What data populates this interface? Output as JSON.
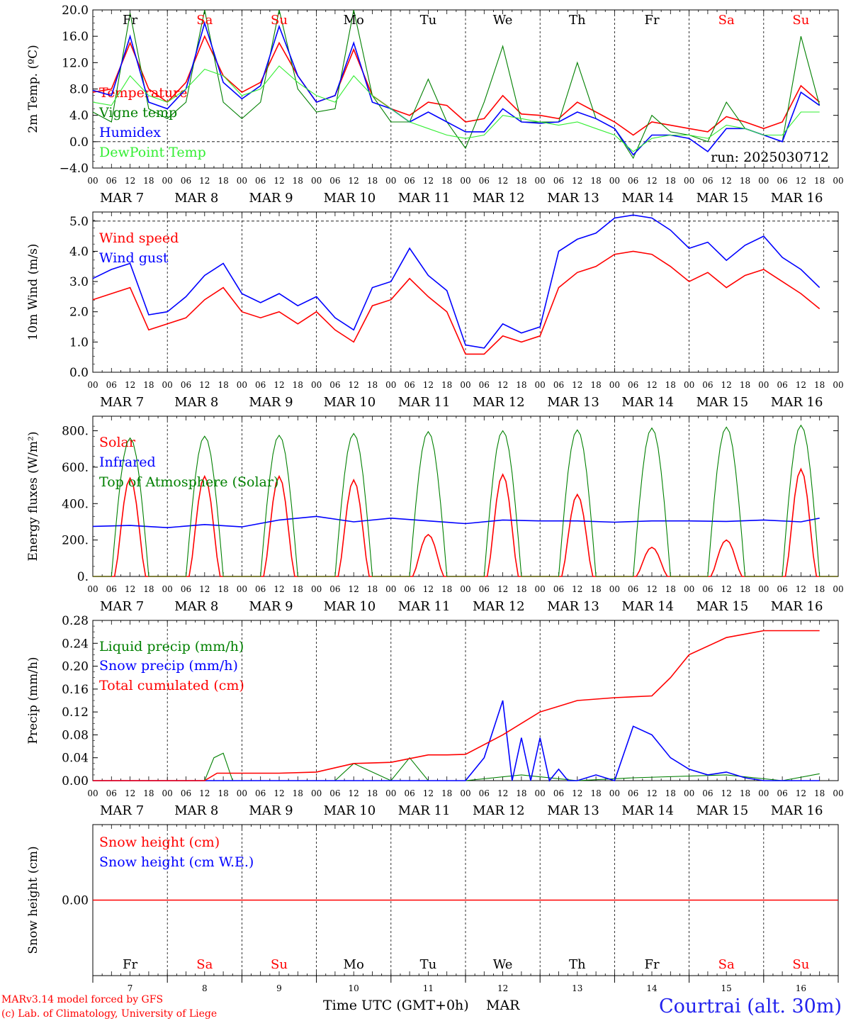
{
  "colors": {
    "red": "#ff0000",
    "green": "#008000",
    "blue": "#0000ff",
    "lightgreen": "#33ee33",
    "weekday": "#000000",
    "weekend": "#ff0000",
    "location": "#2222ee"
  },
  "time_axis": {
    "hour_labels": [
      "00",
      "06",
      "12",
      "18"
    ],
    "dates": [
      "MAR  7",
      "MAR  8",
      "MAR  9",
      "MAR 10",
      "MAR 11",
      "MAR 12",
      "MAR 13",
      "MAR 14",
      "MAR 15",
      "MAR 16"
    ],
    "days": [
      {
        "label": "Fr",
        "weekend": false
      },
      {
        "label": "Sa",
        "weekend": true
      },
      {
        "label": "Su",
        "weekend": true
      },
      {
        "label": "Mo",
        "weekend": false
      },
      {
        "label": "Tu",
        "weekend": false
      },
      {
        "label": "We",
        "weekend": false
      },
      {
        "label": "Th",
        "weekend": false
      },
      {
        "label": "Fr",
        "weekend": false
      },
      {
        "label": "Sa",
        "weekend": true
      },
      {
        "label": "Su",
        "weekend": true
      }
    ],
    "day_numbers": [
      "7",
      "8",
      "9",
      "10",
      "11",
      "12",
      "13",
      "14",
      "15",
      "16"
    ]
  },
  "footer": {
    "model_line": "MARv3.14 model forced by GFS",
    "credit_line": "(c) Lab. of Climatology, University of Liege",
    "xlabel": "Time UTC (GMT+0h)",
    "month": "MAR",
    "location": "Courtrai (alt. 30m)"
  },
  "chart_data": [
    {
      "type": "line",
      "id": "temp",
      "ylabel": "2m Temp. (ºC)",
      "ylim": [
        -4,
        20
      ],
      "yticks": [
        "20.0",
        "16.0",
        "12.0",
        "8.0",
        "4.0",
        "0.0",
        "−4.0"
      ],
      "reference_line": 0,
      "annotation": "run: 2025030712",
      "x_unit": "hours since MAR 7 00 UTC",
      "series": [
        {
          "name": "Temperature",
          "color": "red",
          "x": [
            0,
            6,
            12,
            18,
            24,
            30,
            36,
            42,
            48,
            54,
            60,
            66,
            72,
            78,
            84,
            90,
            96,
            102,
            108,
            114,
            120,
            126,
            132,
            138,
            144,
            150,
            156,
            162,
            168,
            174,
            180,
            186,
            192,
            198,
            204,
            210,
            216,
            222,
            228,
            234
          ],
          "values": [
            7.5,
            8,
            15,
            8,
            6,
            9,
            16,
            10,
            7.5,
            9,
            15,
            10,
            6,
            7,
            14,
            7,
            5,
            4,
            6,
            5.5,
            3,
            3.5,
            7,
            4.2,
            4,
            3.5,
            6,
            4.5,
            3,
            1,
            3,
            2.5,
            2,
            1.5,
            3.8,
            3,
            2,
            3,
            8.5,
            6
          ]
        },
        {
          "name": "Vigne temp",
          "color": "green",
          "x": [
            0,
            6,
            12,
            18,
            24,
            30,
            36,
            42,
            48,
            54,
            60,
            66,
            72,
            78,
            84,
            90,
            96,
            102,
            108,
            114,
            120,
            126,
            132,
            138,
            144,
            150,
            156,
            162,
            168,
            174,
            180,
            186,
            192,
            198,
            204,
            210,
            216,
            222,
            228,
            234
          ],
          "values": [
            4.5,
            3,
            19.5,
            5,
            3.5,
            6,
            20,
            6,
            3.5,
            6,
            20,
            8,
            4.5,
            5,
            20,
            7,
            3,
            3,
            9.5,
            3,
            -1,
            6,
            14.5,
            3,
            3,
            3,
            12,
            3.5,
            2,
            -2.5,
            4,
            1.5,
            1,
            0,
            6,
            2,
            1,
            0,
            16,
            5.5
          ]
        },
        {
          "name": "Humidex",
          "color": "blue",
          "x": [
            0,
            6,
            12,
            18,
            24,
            30,
            36,
            42,
            48,
            54,
            60,
            66,
            72,
            78,
            84,
            90,
            96,
            102,
            108,
            114,
            120,
            126,
            132,
            138,
            144,
            150,
            156,
            162,
            168,
            174,
            180,
            186,
            192,
            198,
            204,
            210,
            216,
            222,
            228,
            234
          ],
          "values": [
            7.8,
            7,
            16,
            6,
            5,
            8,
            18,
            9,
            6.5,
            8.5,
            17.5,
            10,
            6,
            7,
            15,
            6,
            5,
            3,
            4.5,
            3,
            1.5,
            1.5,
            5,
            3,
            2.8,
            3,
            4.5,
            3.5,
            2,
            -2,
            1,
            1,
            0.5,
            -1.5,
            2,
            2,
            1,
            0,
            7.5,
            5.5
          ]
        },
        {
          "name": "DewPoint Temp",
          "color": "lightgreen",
          "x": [
            0,
            6,
            12,
            18,
            24,
            30,
            36,
            42,
            48,
            54,
            60,
            66,
            72,
            78,
            84,
            90,
            96,
            102,
            108,
            114,
            120,
            126,
            132,
            138,
            144,
            150,
            156,
            162,
            168,
            174,
            180,
            186,
            192,
            198,
            204,
            210,
            216,
            222,
            228,
            234
          ],
          "values": [
            6,
            5.5,
            10,
            7,
            6,
            8,
            11,
            10,
            7,
            8,
            11.5,
            9,
            7,
            6,
            10,
            7,
            5,
            3,
            2,
            1,
            0.5,
            1,
            4,
            3.5,
            3,
            2.5,
            3,
            2,
            1,
            -1.5,
            0.5,
            1,
            1,
            0.5,
            2.5,
            2,
            1,
            1,
            4.5,
            4.5
          ]
        }
      ]
    },
    {
      "type": "line",
      "id": "wind",
      "ylabel": "10m Wind (m/s)",
      "ylim": [
        0,
        5.3
      ],
      "yticks": [
        "5.0",
        "4.0",
        "3.0",
        "2.0",
        "1.0",
        "0.0"
      ],
      "reference_line": 5,
      "x_unit": "hours since MAR 7 00 UTC",
      "series": [
        {
          "name": "Wind speed",
          "color": "red",
          "x": [
            0,
            6,
            12,
            18,
            24,
            30,
            36,
            42,
            48,
            54,
            60,
            66,
            72,
            78,
            84,
            90,
            96,
            102,
            108,
            114,
            120,
            126,
            132,
            138,
            144,
            150,
            156,
            162,
            168,
            174,
            180,
            186,
            192,
            198,
            204,
            210,
            216,
            222,
            228,
            234
          ],
          "values": [
            2.4,
            2.6,
            2.8,
            1.4,
            1.6,
            1.8,
            2.4,
            2.8,
            2,
            1.8,
            2,
            1.6,
            2,
            1.4,
            1,
            2.2,
            2.4,
            3.1,
            2.5,
            2,
            0.6,
            0.6,
            1.2,
            1,
            1.2,
            2.8,
            3.3,
            3.5,
            3.9,
            4,
            3.9,
            3.5,
            3,
            3.3,
            2.8,
            3.2,
            3.4,
            3,
            2.6,
            2.1
          ]
        },
        {
          "name": "Wind gust",
          "color": "blue",
          "x": [
            0,
            6,
            12,
            18,
            24,
            30,
            36,
            42,
            48,
            54,
            60,
            66,
            72,
            78,
            84,
            90,
            96,
            102,
            108,
            114,
            120,
            126,
            132,
            138,
            144,
            150,
            156,
            162,
            168,
            174,
            180,
            186,
            192,
            198,
            204,
            210,
            216,
            222,
            228,
            234
          ],
          "values": [
            3.1,
            3.4,
            3.6,
            1.9,
            2,
            2.5,
            3.2,
            3.6,
            2.6,
            2.3,
            2.6,
            2.2,
            2.5,
            1.8,
            1.4,
            2.8,
            3,
            4.1,
            3.2,
            2.7,
            0.9,
            0.8,
            1.6,
            1.3,
            1.5,
            4,
            4.4,
            4.6,
            5.1,
            5.2,
            5.1,
            4.7,
            4.1,
            4.3,
            3.7,
            4.2,
            4.5,
            3.8,
            3.4,
            2.8
          ]
        }
      ]
    },
    {
      "type": "line",
      "id": "energy",
      "ylabel": "Energy fluxes (W/m²)",
      "ylim": [
        0,
        880
      ],
      "yticks": [
        "800.",
        "600.",
        "400.",
        "200.",
        "0."
      ],
      "x_unit": "hours since MAR 7 00 UTC",
      "series": [
        {
          "name": "Solar",
          "color": "red",
          "daily_peaks": [
            540,
            550,
            550,
            530,
            230,
            560,
            450,
            160,
            200,
            590
          ]
        },
        {
          "name": "Infrared",
          "color": "blue",
          "x": [
            0,
            12,
            24,
            36,
            48,
            60,
            72,
            84,
            96,
            108,
            120,
            132,
            144,
            156,
            168,
            180,
            192,
            204,
            216,
            228,
            234
          ],
          "values": [
            275,
            280,
            268,
            285,
            272,
            310,
            330,
            300,
            320,
            305,
            290,
            310,
            305,
            305,
            298,
            305,
            305,
            302,
            310,
            300,
            320
          ]
        },
        {
          "name": "Top of Atmosphere (Solar)",
          "color": "green",
          "daily_peaks": [
            760,
            770,
            775,
            785,
            795,
            800,
            805,
            815,
            820,
            830
          ]
        }
      ]
    },
    {
      "type": "line",
      "id": "precip",
      "ylabel": "Precip (mm/h)",
      "ylim": [
        0,
        0.28
      ],
      "yticks": [
        "0.28",
        "0.24",
        "0.20",
        "0.16",
        "0.12",
        "0.08",
        "0.04",
        "0.00"
      ],
      "x_unit": "hours since MAR 7 00 UTC",
      "series": [
        {
          "name": "Liquid precip (mm/h)",
          "color": "green",
          "x": [
            0,
            36,
            39,
            42,
            45,
            60,
            66,
            78,
            84,
            96,
            102,
            108,
            120,
            138,
            156,
            174,
            204,
            222,
            234
          ],
          "values": [
            0,
            0,
            0.04,
            0.048,
            0,
            0,
            0,
            0,
            0.03,
            0,
            0.04,
            0,
            0,
            0.01,
            0,
            0.005,
            0.01,
            0,
            0.012
          ]
        },
        {
          "name": "Snow precip (mm/h)",
          "color": "blue",
          "x": [
            0,
            120,
            126,
            132,
            135,
            138,
            141,
            144,
            147,
            150,
            153,
            156,
            162,
            168,
            174,
            180,
            186,
            192,
            198,
            204,
            210,
            216,
            234
          ],
          "values": [
            0,
            0,
            0.04,
            0.14,
            0,
            0.075,
            0,
            0.075,
            0,
            0.02,
            0,
            0,
            0.01,
            0,
            0.095,
            0.08,
            0.04,
            0.02,
            0.01,
            0.015,
            0.005,
            0,
            0
          ]
        },
        {
          "name": "Total cumulated (cm)",
          "color": "red",
          "x": [
            0,
            36,
            40,
            60,
            72,
            84,
            96,
            108,
            114,
            120,
            132,
            144,
            150,
            156,
            168,
            180,
            186,
            192,
            204,
            216,
            234
          ],
          "values": [
            0,
            0,
            0.013,
            0.013,
            0.015,
            0.03,
            0.032,
            0.045,
            0.045,
            0.046,
            0.08,
            0.12,
            0.13,
            0.14,
            0.145,
            0.148,
            0.18,
            0.22,
            0.25,
            0.262,
            0.262
          ]
        }
      ]
    },
    {
      "type": "line",
      "id": "snow",
      "ylabel": "Snow height (cm)",
      "yticks": [
        "0.00"
      ],
      "x_unit": "hours since MAR 7 00 UTC",
      "series": [
        {
          "name": "Snow height (cm)",
          "color": "red",
          "x": [
            0,
            240
          ],
          "values": [
            0,
            0
          ]
        },
        {
          "name": "Snow height (cm W.E.)",
          "color": "blue",
          "x": [],
          "values": []
        }
      ]
    }
  ]
}
